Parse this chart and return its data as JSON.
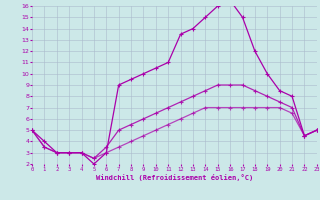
{
  "xlabel": "Windchill (Refroidissement éolien,°C)",
  "bg_color": "#cce8e8",
  "grid_color": "#aabbcc",
  "line_color": "#aa00aa",
  "line_color2": "#990099",
  "xmin": 0,
  "xmax": 23,
  "ymin": 2,
  "ymax": 16,
  "line1_x": [
    0,
    1,
    2,
    3,
    4,
    5,
    6,
    7,
    8,
    9,
    10,
    11,
    12,
    13,
    14,
    15,
    16,
    17,
    18,
    19,
    20,
    21,
    22,
    23
  ],
  "line1_y": [
    5,
    4,
    3,
    3,
    3,
    2,
    3,
    9,
    9.5,
    10,
    10.5,
    11,
    13.5,
    14,
    15,
    16,
    16.5,
    15,
    12,
    10,
    8.5,
    8,
    4.5,
    5
  ],
  "line2_x": [
    0,
    1,
    2,
    3,
    4,
    5,
    6,
    7,
    8,
    9,
    10,
    11,
    12,
    13,
    14,
    15,
    16,
    17,
    18,
    19,
    20,
    21,
    22,
    23
  ],
  "line2_y": [
    5,
    3.5,
    3,
    3,
    3,
    2.5,
    3.5,
    5,
    5.5,
    6,
    6.5,
    7,
    7.5,
    8,
    8.5,
    9,
    9,
    9,
    8.5,
    8,
    7.5,
    7,
    4.5,
    5
  ],
  "line3_x": [
    0,
    1,
    2,
    3,
    4,
    5,
    6,
    7,
    8,
    9,
    10,
    11,
    12,
    13,
    14,
    15,
    16,
    17,
    18,
    19,
    20,
    21,
    22,
    23
  ],
  "line3_y": [
    5,
    3.5,
    3,
    3,
    3,
    2.5,
    3.0,
    3.5,
    4.0,
    4.5,
    5.0,
    5.5,
    6.0,
    6.5,
    7.0,
    7.0,
    7.0,
    7.0,
    7.0,
    7.0,
    7.0,
    6.5,
    4.5,
    5
  ]
}
